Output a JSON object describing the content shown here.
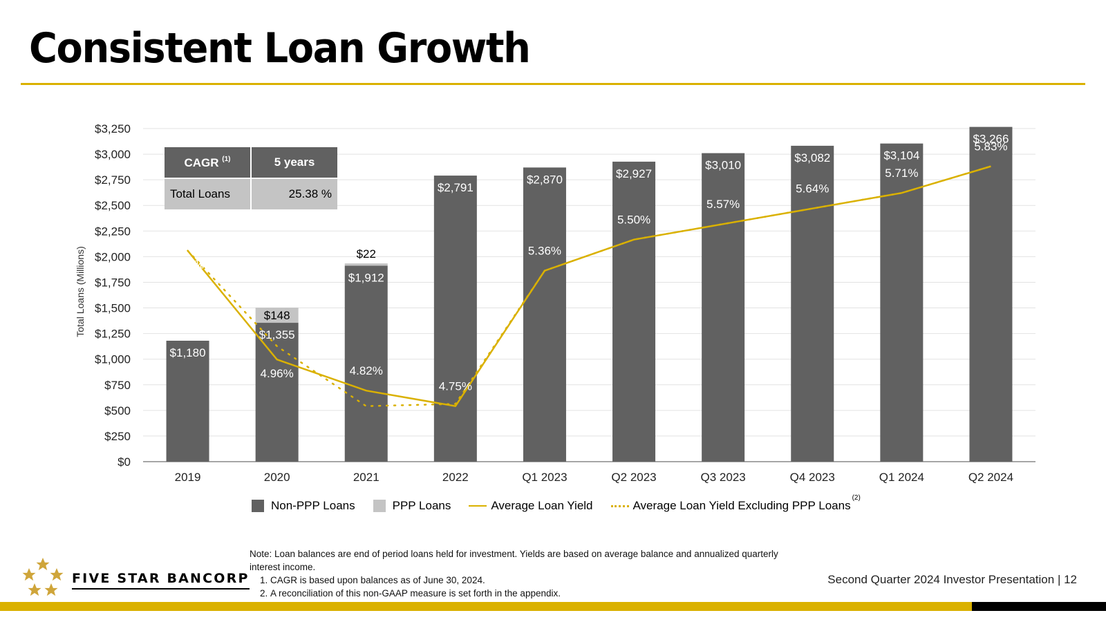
{
  "slide": {
    "title": "Consistent Loan Growth",
    "footer": "Second Quarter 2024 Investor Presentation |  12",
    "logo_text": "FIVE STAR BANCORP"
  },
  "cagr_table": {
    "header_col1": "CAGR",
    "header_col1_sup": "(1)",
    "header_col2": "5 years",
    "row_label": "Total Loans",
    "row_value": "25.38 %"
  },
  "legend": {
    "non_ppp": "Non-PPP Loans",
    "ppp": "PPP Loans",
    "avg_yield": "Average Loan Yield",
    "avg_yield_ex_ppp": "Average Loan Yield Excluding PPP Loans",
    "avg_yield_ex_ppp_sup": "(2)"
  },
  "notes": {
    "intro": "Note: Loan balances are end of period loans held for investment. Yields are based on average balance and annualized quarterly interest income.",
    "items": [
      "CAGR is based upon balances as of June 30, 2024.",
      "A reconciliation of this non-GAAP measure is set forth in the appendix."
    ]
  },
  "chart_data": {
    "type": "bar",
    "ylabel": "Total Loans (Millions)",
    "ylim": [
      0,
      3250
    ],
    "yticks": [
      "$0",
      "$250",
      "$500",
      "$750",
      "$1,000",
      "$1,250",
      "$1,500",
      "$1,750",
      "$2,000",
      "$2,250",
      "$2,500",
      "$2,750",
      "$3,000",
      "$3,250"
    ],
    "categories": [
      "2019",
      "2020",
      "2021",
      "2022",
      "Q1 2023",
      "Q2 2023",
      "Q3 2023",
      "Q4 2023",
      "Q1 2024",
      "Q2 2024"
    ],
    "series": [
      {
        "name": "Non-PPP Loans",
        "color": "#616161",
        "values": [
          1180,
          1355,
          1912,
          2791,
          2870,
          2927,
          3010,
          3082,
          3104,
          3266
        ],
        "labels": [
          "$1,180",
          "$1,355",
          "$1,912",
          "$2,791",
          "$2,870",
          "$2,927",
          "$3,010",
          "$3,082",
          "$3,104",
          "$3,266"
        ]
      },
      {
        "name": "PPP Loans",
        "color": "#c4c4c4",
        "values": [
          0,
          148,
          22,
          0,
          0,
          0,
          0,
          0,
          0,
          0
        ],
        "labels": [
          "",
          "$148",
          "$22",
          "",
          "",
          "",
          "",
          "",
          "",
          ""
        ]
      },
      {
        "name": "Average Loan Yield",
        "type": "line",
        "color": "#dab100",
        "values": [
          5.45,
          4.96,
          4.82,
          4.75,
          5.36,
          5.5,
          5.57,
          5.64,
          5.71,
          5.83
        ],
        "labels": [
          "5.45%",
          "4.96%",
          "4.82%",
          "4.75%",
          "5.36%",
          "5.50%",
          "5.57%",
          "5.64%",
          "5.71%",
          "5.83%"
        ]
      },
      {
        "name": "Average Loan Yield Excluding PPP Loans",
        "type": "dotted-line",
        "color": "#dab100",
        "values": [
          5.45,
          5.02,
          4.75,
          4.76,
          5.36,
          5.5,
          5.57,
          5.64,
          5.71,
          5.83
        ],
        "labels": []
      }
    ],
    "yield_axis_hidden": true,
    "grid": true,
    "legend_position": "bottom"
  }
}
